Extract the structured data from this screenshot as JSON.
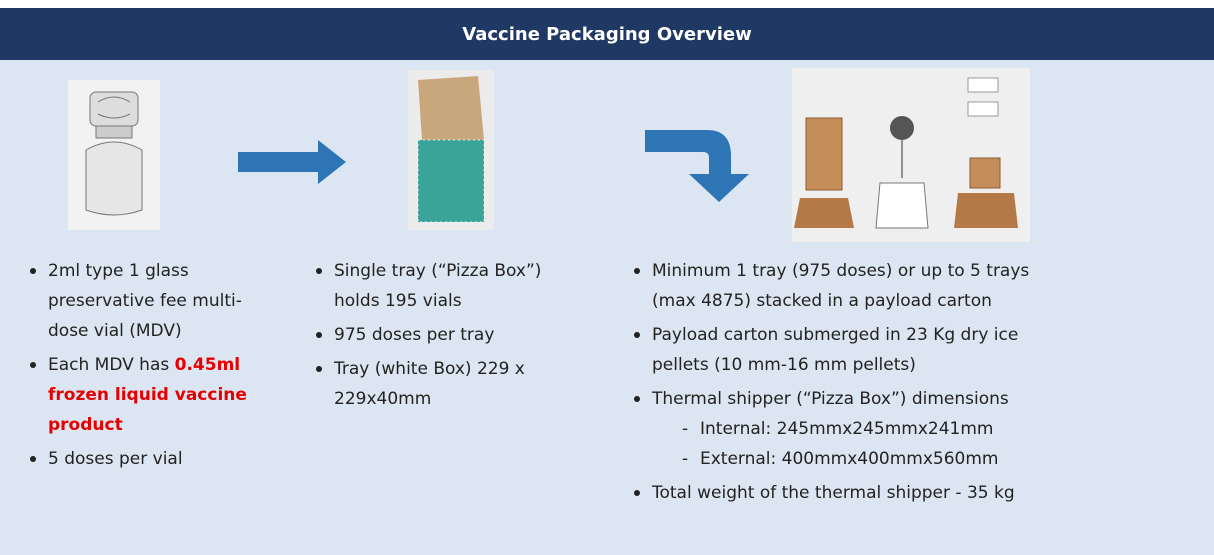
{
  "header": {
    "title": "Vaccine Packaging Overview"
  },
  "columns": [
    {
      "bullets": [
        {
          "text": "2ml type 1 glass preservative fee multi-dose vial (MDV)"
        },
        {
          "text": "Each MDV has ",
          "highlight": "0.45ml frozen liquid vaccine product"
        },
        {
          "text": "5 doses per vial"
        }
      ]
    },
    {
      "bullets": [
        {
          "text": "Single tray (“Pizza Box”) holds 195 vials"
        },
        {
          "text": "975 doses per tray"
        },
        {
          "text": "Tray (white Box) 229 x 229x40mm"
        }
      ]
    },
    {
      "bullets": [
        {
          "text": "Minimum 1 tray (975 doses) or up to 5 trays (max 4875) stacked in a payload carton"
        },
        {
          "text": "Payload carton submerged in 23 Kg dry ice pellets (10 mm-16 mm pellets)"
        },
        {
          "text": "Thermal shipper (“Pizza Box”) dimensions",
          "sub": [
            "Internal: 245mmx245mmx241mm",
            "External: 400mmx400mmx560mm"
          ]
        },
        {
          "text": "Total weight of the thermal shipper - 35 kg"
        }
      ]
    }
  ]
}
